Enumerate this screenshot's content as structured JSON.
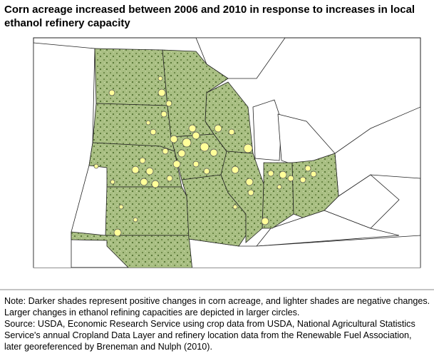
{
  "header": {
    "title": "Corn acreage increased between 2006 and 2010 in response to increases in local ethanol refinery capacity"
  },
  "notes": {
    "note": "Note: Darker shades represent positive changes in corn acreage, and lighter shades are negative changes. Larger changes in ethanol refining capacities are depicted in larger circles.",
    "source": "Source: USDA, Economic Research Service using crop data from USDA, National Agricultural Statistics Service's annual Cropland Data Layer and refinery location data from the Renewable Fuel Association, later georeferenced by Breneman and Nulph (2010)."
  }
}
